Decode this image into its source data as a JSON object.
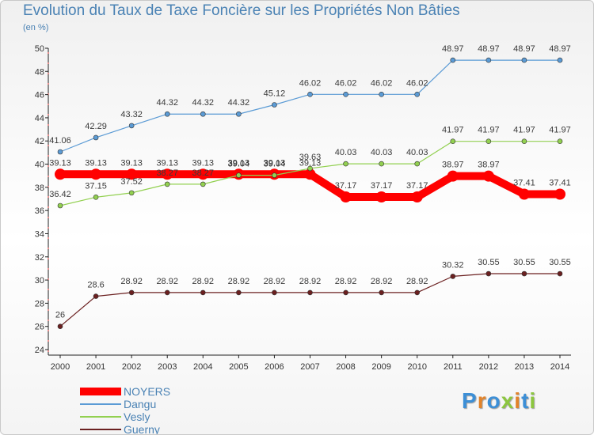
{
  "chart_data": {
    "type": "line",
    "title": "Evolution du Taux de Taxe Foncière sur les Propriétés Non Bâties",
    "subtitle": "(en %)",
    "categories": [
      "2000",
      "2001",
      "2002",
      "2003",
      "2004",
      "2005",
      "2006",
      "2007",
      "2008",
      "2009",
      "2010",
      "2011",
      "2012",
      "2013",
      "2014"
    ],
    "y_ticks": [
      "24",
      "26",
      "28",
      "30",
      "32",
      "34",
      "36",
      "38",
      "40",
      "42",
      "44",
      "46",
      "48",
      "50"
    ],
    "ylim": [
      24,
      50
    ],
    "grid": false,
    "series": [
      {
        "name": "NOYERS",
        "color": "#ff0000",
        "values": [
          39.13,
          39.13,
          39.13,
          39.13,
          39.13,
          39.13,
          39.13,
          39.13,
          37.17,
          37.17,
          37.17,
          38.97,
          38.97,
          37.41,
          37.41
        ],
        "labels": [
          "39.13",
          "39.13",
          "39.13",
          "39.13",
          "39.13",
          "39.13",
          "39.13",
          "39.13",
          "37.17",
          "37.17",
          "37.17",
          "38.97",
          "38.97",
          "37.41",
          "37.41"
        ]
      },
      {
        "name": "Dangu",
        "color": "#5b9bd5",
        "values": [
          41.06,
          42.29,
          43.32,
          44.32,
          44.32,
          44.32,
          45.12,
          46.02,
          46.02,
          46.02,
          46.02,
          48.97,
          48.97,
          48.97,
          48.97
        ],
        "labels": [
          "41.06",
          "42.29",
          "43.32",
          "44.32",
          "44.32",
          "44.32",
          "45.12",
          "46.02",
          "46.02",
          "46.02",
          "46.02",
          "48.97",
          "48.97",
          "48.97",
          "48.97"
        ]
      },
      {
        "name": "Vesly",
        "color": "#92d050",
        "values": [
          36.42,
          37.15,
          37.52,
          38.27,
          38.27,
          39.04,
          39.04,
          39.63,
          40.03,
          40.03,
          40.03,
          41.97,
          41.97,
          41.97,
          41.97
        ],
        "labels": [
          "36.42",
          "37.15",
          "37.52",
          "38.27",
          "38.27",
          "39.04",
          "39.04",
          "39.63",
          "40.03",
          "40.03",
          "40.03",
          "41.97",
          "41.97",
          "41.97",
          "41.97"
        ]
      },
      {
        "name": "Guerny",
        "color": "#6b2020",
        "values": [
          26,
          28.6,
          28.92,
          28.92,
          28.92,
          28.92,
          28.92,
          28.92,
          28.92,
          28.92,
          28.92,
          30.32,
          30.55,
          30.55,
          30.55
        ],
        "labels": [
          "26",
          "28.6",
          "28.92",
          "28.92",
          "28.92",
          "28.92",
          "28.92",
          "28.92",
          "28.92",
          "28.92",
          "28.92",
          "30.32",
          "30.55",
          "30.55",
          "30.55"
        ]
      }
    ]
  },
  "logo": {
    "text": "Proxiti",
    "colors": [
      "#3d8fd6",
      "#e2832a",
      "#3d8fd6",
      "#8cc63f",
      "#e2832a",
      "#3d8fd6",
      "#8cc63f"
    ]
  }
}
